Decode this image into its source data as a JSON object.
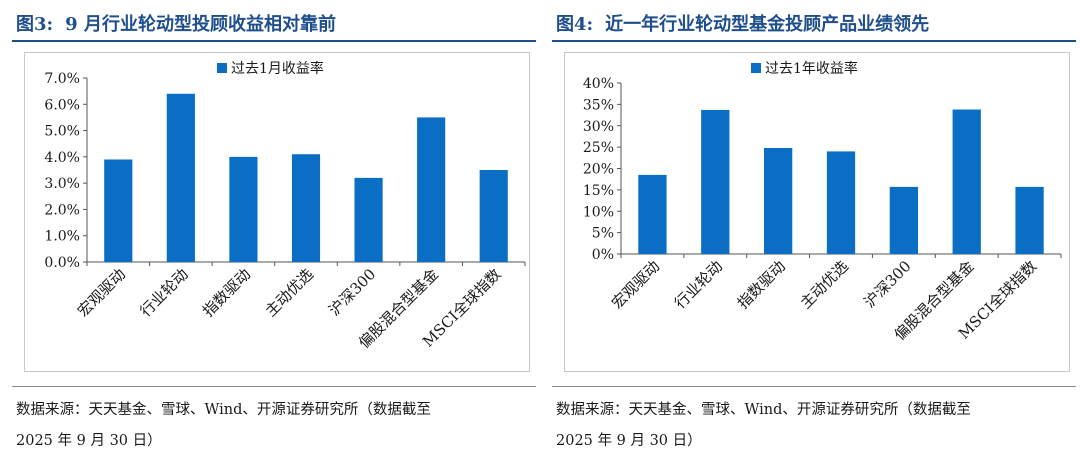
{
  "figures": [
    {
      "number": "图3:",
      "title": "9 月行业轮动型投顾收益相对靠前",
      "source_line1": "数据来源：天天基金、雪球、Wind、开源证券研究所（数据截至",
      "source_line2": "2025 年 9 月 30 日）"
    },
    {
      "number": "图4:",
      "title": "近一年行业轮动型基金投顾产品业绩领先",
      "source_line1": "数据来源：天天基金、雪球、Wind、开源证券研究所（数据截至",
      "source_line2": "2025 年 9 月 30 日）"
    }
  ],
  "chart_data": [
    {
      "type": "bar",
      "categories": [
        "宏观驱动",
        "行业轮动",
        "指数驱动",
        "主动优选",
        "沪深300",
        "偏股混合型基金",
        "MSCI全球指数"
      ],
      "series": [
        {
          "name": "过去1月收益率",
          "values": [
            3.9,
            6.4,
            4.0,
            4.1,
            3.2,
            5.5,
            3.5
          ]
        }
      ],
      "ylim": [
        0,
        7
      ],
      "yticks": [
        "0.0%",
        "1.0%",
        "2.0%",
        "3.0%",
        "4.0%",
        "5.0%",
        "6.0%",
        "7.0%"
      ],
      "ytick_values": [
        0,
        1,
        2,
        3,
        4,
        5,
        6,
        7
      ],
      "legend_position": "top",
      "bar_color": "#0a6fc4",
      "grid": false
    },
    {
      "type": "bar",
      "categories": [
        "宏观驱动",
        "行业轮动",
        "指数驱动",
        "主动优选",
        "沪深300",
        "偏股混合型基金",
        "MSCI全球指数"
      ],
      "series": [
        {
          "name": "过去1年收益率",
          "values": [
            18.5,
            33.7,
            24.8,
            24.0,
            15.7,
            33.8,
            15.7
          ]
        }
      ],
      "ylim": [
        0,
        40
      ],
      "yticks": [
        "0%",
        "5%",
        "10%",
        "15%",
        "20%",
        "25%",
        "30%",
        "35%",
        "40%"
      ],
      "ytick_values": [
        0,
        5,
        10,
        15,
        20,
        25,
        30,
        35,
        40
      ],
      "legend_position": "top",
      "bar_color": "#0a6fc4",
      "grid": false
    }
  ]
}
